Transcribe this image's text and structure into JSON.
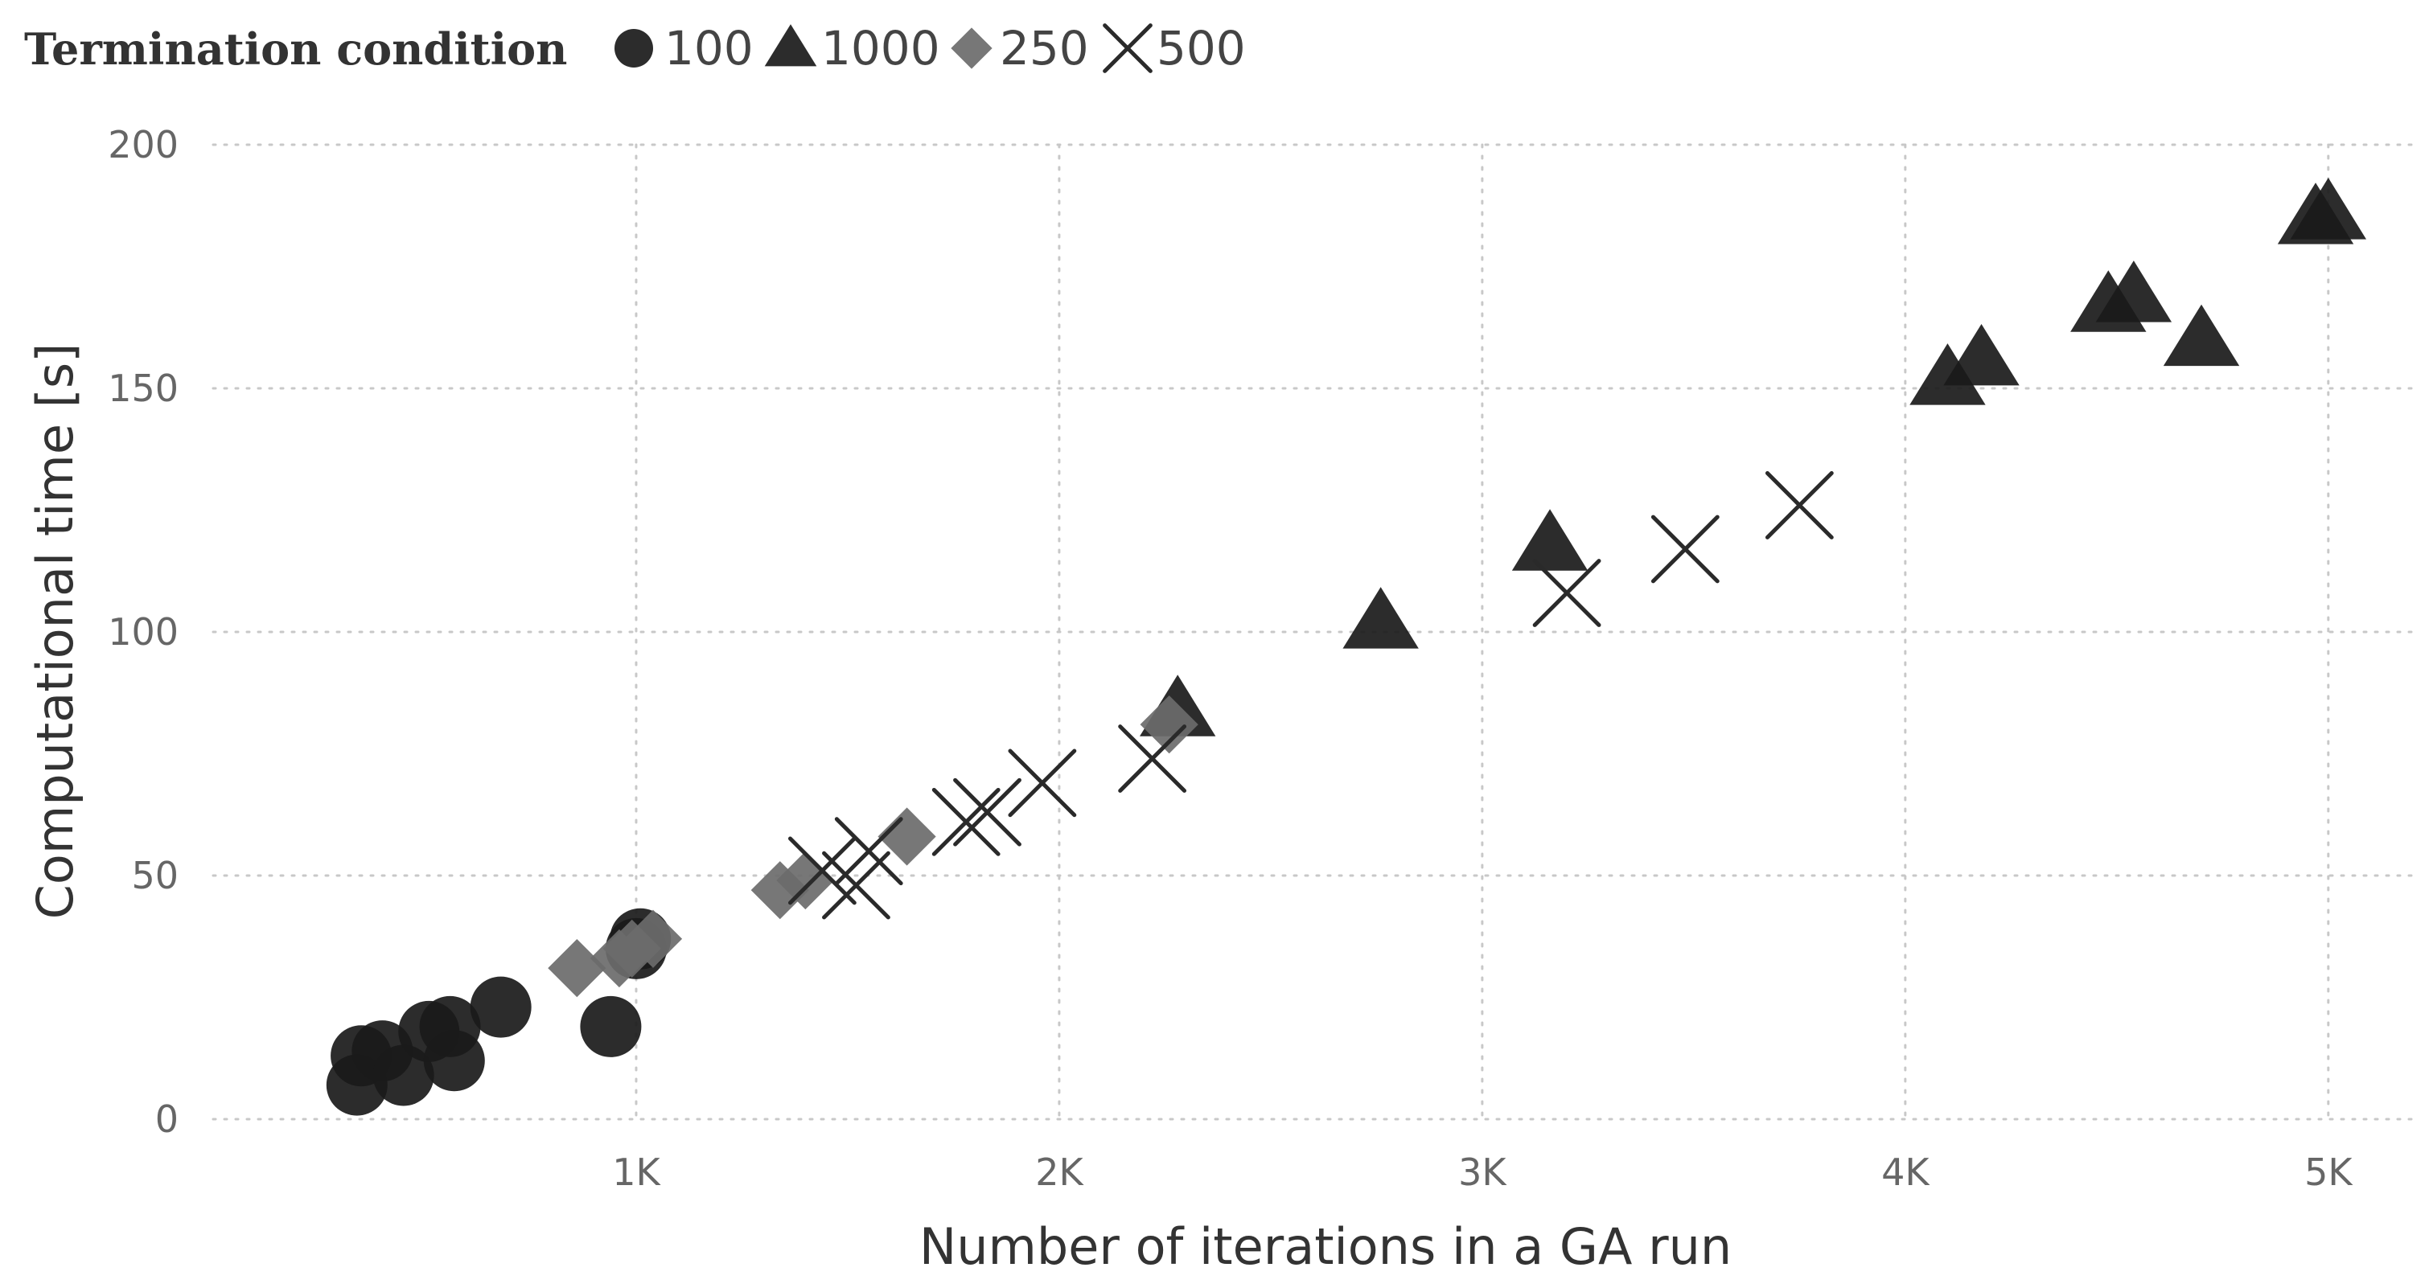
{
  "chart_data": {
    "type": "scatter",
    "title": "",
    "xlabel": "Number of iterations in a GA run",
    "ylabel": "Computational time [s]",
    "xlim": [
      0,
      5200
    ],
    "ylim": [
      0,
      200
    ],
    "x_ticks": [
      1000,
      2000,
      3000,
      4000,
      5000
    ],
    "x_tick_labels": [
      "1K",
      "2K",
      "3K",
      "4K",
      "5K"
    ],
    "y_ticks": [
      0,
      50,
      100,
      150,
      200
    ],
    "y_tick_labels": [
      "0",
      "50",
      "100",
      "150",
      "200"
    ],
    "grid": true,
    "legend": {
      "title": "Termination condition",
      "placement": "top-left"
    },
    "series": [
      {
        "name": "100",
        "marker": "circle",
        "color": "#1a1a1a",
        "points": [
          [
            340,
            7
          ],
          [
            350,
            13
          ],
          [
            400,
            14
          ],
          [
            450,
            9
          ],
          [
            510,
            18
          ],
          [
            560,
            19
          ],
          [
            570,
            12
          ],
          [
            680,
            23
          ],
          [
            940,
            19
          ],
          [
            1000,
            35
          ],
          [
            1010,
            37
          ]
        ]
      },
      {
        "name": "1000",
        "marker": "triangle",
        "color": "#1a1a1a",
        "points": [
          [
            2280,
            84
          ],
          [
            2760,
            102
          ],
          [
            3160,
            118
          ],
          [
            4100,
            152
          ],
          [
            4180,
            156
          ],
          [
            4480,
            167
          ],
          [
            4540,
            169
          ],
          [
            4700,
            160
          ],
          [
            4970,
            185
          ],
          [
            5000,
            186
          ]
        ]
      },
      {
        "name": "250",
        "marker": "diamond",
        "color": "#6b6b6b",
        "points": [
          [
            860,
            31
          ],
          [
            960,
            33
          ],
          [
            990,
            35
          ],
          [
            1040,
            37
          ],
          [
            1340,
            47
          ],
          [
            1400,
            49
          ],
          [
            1640,
            58
          ],
          [
            2260,
            81
          ]
        ]
      },
      {
        "name": "500",
        "marker": "x",
        "color": "#2a2a2a",
        "points": [
          [
            1440,
            51
          ],
          [
            1520,
            48
          ],
          [
            1550,
            55
          ],
          [
            1780,
            61
          ],
          [
            1830,
            63
          ],
          [
            1960,
            69
          ],
          [
            2220,
            74
          ],
          [
            3200,
            108
          ],
          [
            3480,
            117
          ],
          [
            3750,
            126
          ]
        ]
      }
    ]
  }
}
